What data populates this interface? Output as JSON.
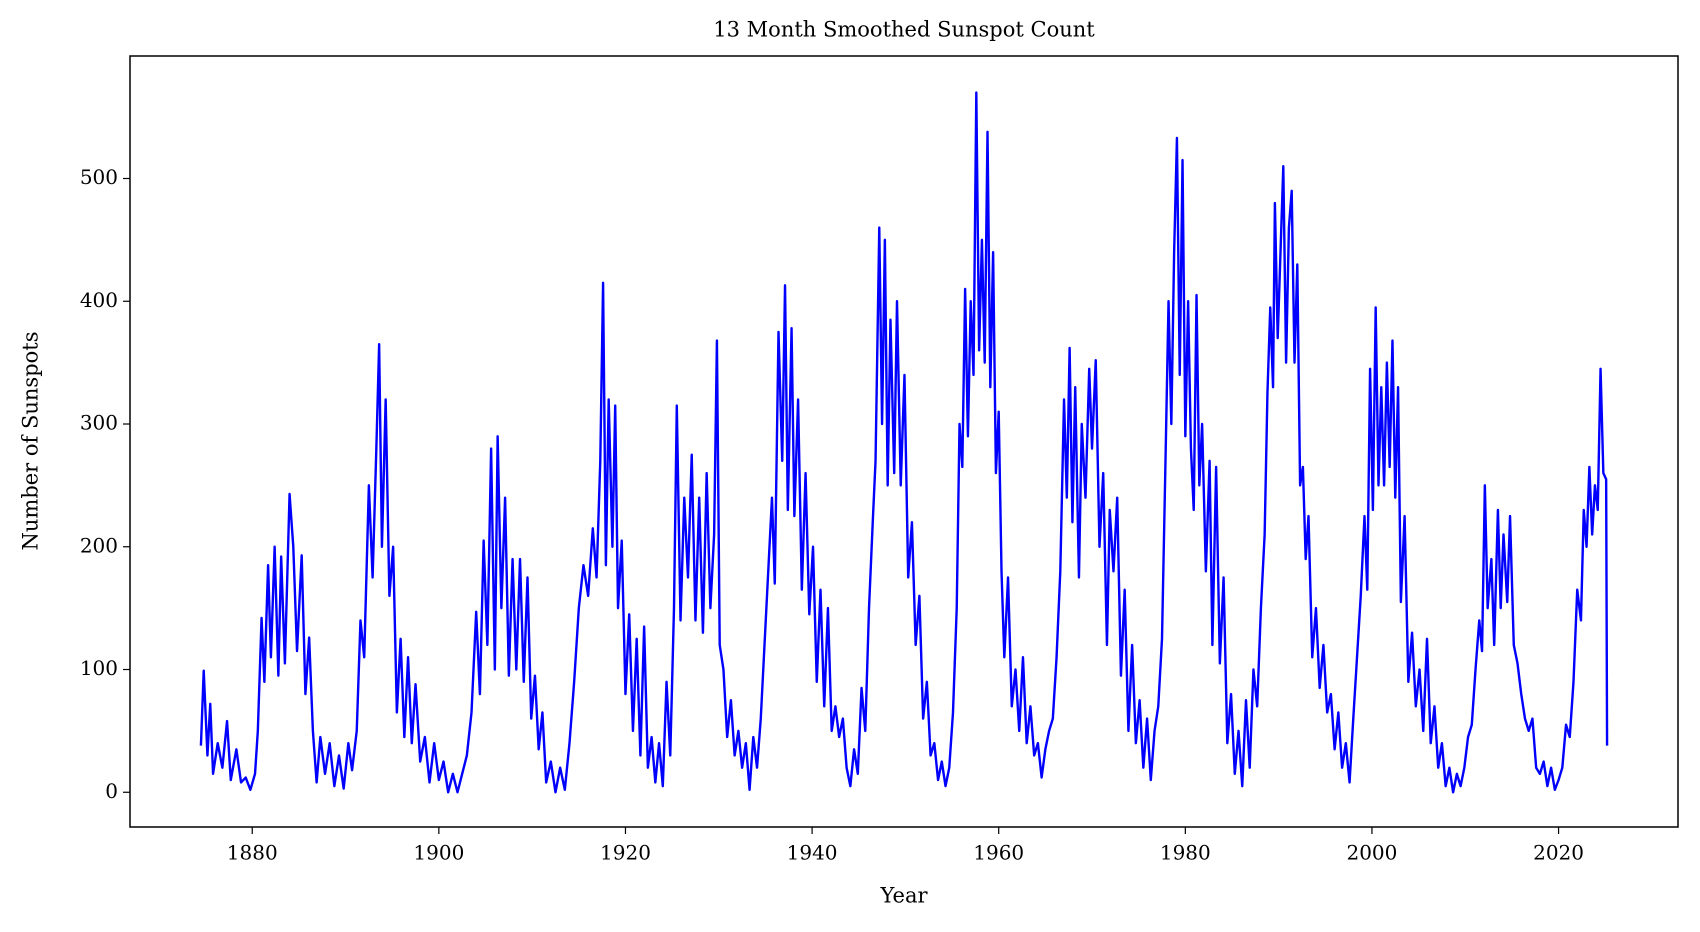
{
  "chart_data": {
    "type": "line",
    "title": "13 Month Smoothed Sunspot Count",
    "x_label": "Year",
    "y_label": "Number of Sunspots",
    "color": "#0000ff",
    "xlim": [
      1866.9,
      2032.8
    ],
    "ylim": [
      -28.3,
      599.8
    ],
    "xticks": [
      1880,
      1900,
      1920,
      1940,
      1960,
      1980,
      2000,
      2020
    ],
    "yticks": [
      0,
      100,
      200,
      300,
      400,
      500
    ],
    "x": [
      1874.5,
      1874.8,
      1875.2,
      1875.5,
      1875.8,
      1876.3,
      1876.8,
      1877.3,
      1877.7,
      1878.3,
      1878.8,
      1879.3,
      1879.8,
      1880.3,
      1880.6,
      1881.0,
      1881.3,
      1881.7,
      1882.0,
      1882.4,
      1882.8,
      1883.1,
      1883.5,
      1884.0,
      1884.4,
      1884.8,
      1885.3,
      1885.7,
      1886.1,
      1886.5,
      1886.9,
      1887.3,
      1887.8,
      1888.3,
      1888.8,
      1889.3,
      1889.8,
      1890.3,
      1890.7,
      1891.2,
      1891.6,
      1892.0,
      1892.5,
      1892.9,
      1893.3,
      1893.6,
      1893.9,
      1894.3,
      1894.7,
      1895.1,
      1895.5,
      1895.9,
      1896.3,
      1896.7,
      1897.1,
      1897.5,
      1898.0,
      1898.5,
      1899.0,
      1899.5,
      1900.0,
      1900.5,
      1901.0,
      1901.5,
      1902.0,
      1902.5,
      1903.0,
      1903.5,
      1904.0,
      1904.4,
      1904.8,
      1905.2,
      1905.6,
      1906.0,
      1906.3,
      1906.7,
      1907.1,
      1907.5,
      1907.9,
      1908.3,
      1908.7,
      1909.1,
      1909.5,
      1909.9,
      1910.3,
      1910.7,
      1911.1,
      1911.5,
      1912.0,
      1912.5,
      1913.0,
      1913.5,
      1914.0,
      1914.5,
      1915.0,
      1915.5,
      1916.0,
      1916.5,
      1916.9,
      1917.3,
      1917.6,
      1917.9,
      1918.2,
      1918.6,
      1918.9,
      1919.2,
      1919.6,
      1920.0,
      1920.4,
      1920.8,
      1921.2,
      1921.6,
      1922.0,
      1922.4,
      1922.8,
      1923.2,
      1923.6,
      1924.0,
      1924.4,
      1924.8,
      1925.2,
      1925.5,
      1925.9,
      1926.3,
      1926.7,
      1927.1,
      1927.5,
      1927.9,
      1928.3,
      1928.7,
      1929.1,
      1929.5,
      1929.8,
      1930.1,
      1930.5,
      1930.9,
      1931.3,
      1931.7,
      1932.1,
      1932.5,
      1932.9,
      1933.3,
      1933.7,
      1934.1,
      1934.5,
      1934.9,
      1935.3,
      1935.7,
      1936.0,
      1936.4,
      1936.8,
      1937.1,
      1937.4,
      1937.8,
      1938.1,
      1938.5,
      1938.9,
      1939.3,
      1939.7,
      1940.1,
      1940.5,
      1940.9,
      1941.3,
      1941.7,
      1942.1,
      1942.5,
      1942.9,
      1943.3,
      1943.7,
      1944.1,
      1944.5,
      1944.9,
      1945.3,
      1945.7,
      1946.1,
      1946.5,
      1946.8,
      1947.2,
      1947.5,
      1947.8,
      1948.1,
      1948.4,
      1948.8,
      1949.1,
      1949.5,
      1949.9,
      1950.3,
      1950.7,
      1951.1,
      1951.5,
      1951.9,
      1952.3,
      1952.7,
      1953.1,
      1953.5,
      1953.9,
      1954.3,
      1954.7,
      1955.1,
      1955.5,
      1955.8,
      1956.1,
      1956.4,
      1956.7,
      1957.0,
      1957.3,
      1957.6,
      1957.9,
      1958.2,
      1958.5,
      1958.8,
      1959.1,
      1959.4,
      1959.7,
      1960.0,
      1960.3,
      1960.6,
      1961.0,
      1961.4,
      1961.8,
      1962.2,
      1962.6,
      1963.0,
      1963.4,
      1963.8,
      1964.2,
      1964.6,
      1965.0,
      1965.4,
      1965.8,
      1966.2,
      1966.6,
      1967.0,
      1967.3,
      1967.6,
      1967.9,
      1968.2,
      1968.6,
      1968.9,
      1969.3,
      1969.7,
      1970.0,
      1970.4,
      1970.8,
      1971.2,
      1971.6,
      1971.9,
      1972.3,
      1972.7,
      1973.1,
      1973.5,
      1973.9,
      1974.3,
      1974.7,
      1975.1,
      1975.5,
      1975.9,
      1976.3,
      1976.7,
      1977.1,
      1977.5,
      1977.9,
      1978.2,
      1978.5,
      1978.8,
      1979.1,
      1979.4,
      1979.7,
      1980.0,
      1980.3,
      1980.6,
      1980.9,
      1981.2,
      1981.5,
      1981.8,
      1982.2,
      1982.6,
      1982.9,
      1983.3,
      1983.7,
      1984.1,
      1984.5,
      1984.9,
      1985.3,
      1985.7,
      1986.1,
      1986.5,
      1986.9,
      1987.3,
      1987.7,
      1988.1,
      1988.5,
      1988.8,
      1989.1,
      1989.4,
      1989.6,
      1989.9,
      1990.2,
      1990.5,
      1990.8,
      1991.1,
      1991.4,
      1991.7,
      1992.0,
      1992.3,
      1992.6,
      1992.9,
      1993.2,
      1993.6,
      1994.0,
      1994.4,
      1994.8,
      1995.2,
      1995.6,
      1996.0,
      1996.4,
      1996.8,
      1997.2,
      1997.6,
      1998.0,
      1998.4,
      1998.8,
      1999.2,
      1999.5,
      1999.8,
      2000.1,
      2000.4,
      2000.7,
      2001.0,
      2001.3,
      2001.6,
      2001.9,
      2002.2,
      2002.5,
      2002.8,
      2003.1,
      2003.5,
      2003.9,
      2004.3,
      2004.7,
      2005.1,
      2005.5,
      2005.9,
      2006.3,
      2006.7,
      2007.1,
      2007.5,
      2007.9,
      2008.3,
      2008.7,
      2009.1,
      2009.5,
      2009.9,
      2010.3,
      2010.7,
      2011.1,
      2011.5,
      2011.8,
      2012.1,
      2012.4,
      2012.8,
      2013.1,
      2013.5,
      2013.8,
      2014.1,
      2014.5,
      2014.8,
      2015.2,
      2015.6,
      2016.0,
      2016.4,
      2016.8,
      2017.2,
      2017.6,
      2018.0,
      2018.4,
      2018.8,
      2019.2,
      2019.6,
      2020.0,
      2020.4,
      2020.8,
      2021.2,
      2021.6,
      2022.0,
      2022.4,
      2022.7,
      2023.0,
      2023.3,
      2023.6,
      2023.9,
      2024.2,
      2024.5,
      2024.8,
      2025.1,
      2025.2
    ],
    "values": [
      38,
      99,
      30,
      72,
      15,
      40,
      20,
      58,
      10,
      35,
      8,
      12,
      2,
      15,
      50,
      142,
      90,
      185,
      110,
      200,
      95,
      192,
      105,
      243,
      200,
      115,
      193,
      80,
      126,
      50,
      8,
      45,
      15,
      40,
      5,
      30,
      3,
      40,
      18,
      50,
      140,
      110,
      250,
      175,
      280,
      365,
      200,
      320,
      160,
      200,
      65,
      125,
      45,
      110,
      40,
      88,
      25,
      45,
      8,
      40,
      10,
      25,
      0,
      15,
      0,
      15,
      30,
      65,
      147,
      80,
      205,
      120,
      280,
      100,
      290,
      150,
      240,
      95,
      190,
      100,
      190,
      90,
      175,
      60,
      95,
      35,
      65,
      8,
      25,
      0,
      20,
      2,
      40,
      90,
      150,
      185,
      160,
      215,
      175,
      270,
      415,
      185,
      320,
      200,
      315,
      150,
      205,
      80,
      145,
      50,
      125,
      30,
      135,
      20,
      45,
      8,
      40,
      5,
      90,
      30,
      150,
      315,
      140,
      240,
      175,
      275,
      140,
      240,
      130,
      260,
      150,
      210,
      368,
      120,
      100,
      45,
      75,
      30,
      50,
      20,
      40,
      2,
      45,
      20,
      60,
      120,
      180,
      240,
      170,
      375,
      270,
      413,
      230,
      378,
      225,
      320,
      165,
      260,
      145,
      200,
      90,
      165,
      70,
      150,
      50,
      70,
      45,
      60,
      20,
      5,
      35,
      15,
      85,
      50,
      150,
      220,
      270,
      460,
      300,
      450,
      250,
      385,
      260,
      400,
      250,
      340,
      175,
      220,
      120,
      160,
      60,
      90,
      30,
      40,
      10,
      25,
      5,
      20,
      65,
      150,
      300,
      265,
      410,
      290,
      400,
      340,
      570,
      360,
      450,
      350,
      538,
      330,
      440,
      260,
      310,
      180,
      110,
      175,
      70,
      100,
      50,
      110,
      40,
      70,
      30,
      40,
      12,
      35,
      50,
      60,
      110,
      180,
      320,
      240,
      362,
      220,
      330,
      175,
      300,
      240,
      345,
      280,
      352,
      200,
      260,
      120,
      230,
      180,
      240,
      95,
      165,
      50,
      120,
      40,
      75,
      20,
      60,
      10,
      50,
      70,
      125,
      280,
      400,
      300,
      440,
      533,
      340,
      515,
      290,
      400,
      280,
      230,
      405,
      250,
      300,
      180,
      270,
      120,
      265,
      105,
      175,
      40,
      80,
      15,
      50,
      5,
      75,
      20,
      100,
      70,
      150,
      210,
      325,
      395,
      330,
      480,
      370,
      440,
      510,
      350,
      460,
      490,
      350,
      430,
      250,
      265,
      190,
      225,
      110,
      150,
      85,
      120,
      65,
      80,
      35,
      65,
      20,
      40,
      8,
      60,
      110,
      160,
      225,
      165,
      345,
      230,
      395,
      250,
      330,
      250,
      350,
      265,
      368,
      240,
      330,
      155,
      225,
      90,
      130,
      70,
      100,
      50,
      125,
      40,
      70,
      20,
      40,
      5,
      20,
      0,
      15,
      5,
      20,
      45,
      55,
      100,
      140,
      115,
      250,
      150,
      190,
      120,
      230,
      150,
      210,
      155,
      225,
      120,
      105,
      80,
      60,
      50,
      60,
      20,
      15,
      25,
      5,
      20,
      2,
      10,
      20,
      55,
      45,
      90,
      165,
      140,
      230,
      200,
      265,
      210,
      250,
      230,
      345,
      260,
      255,
      38
    ]
  }
}
